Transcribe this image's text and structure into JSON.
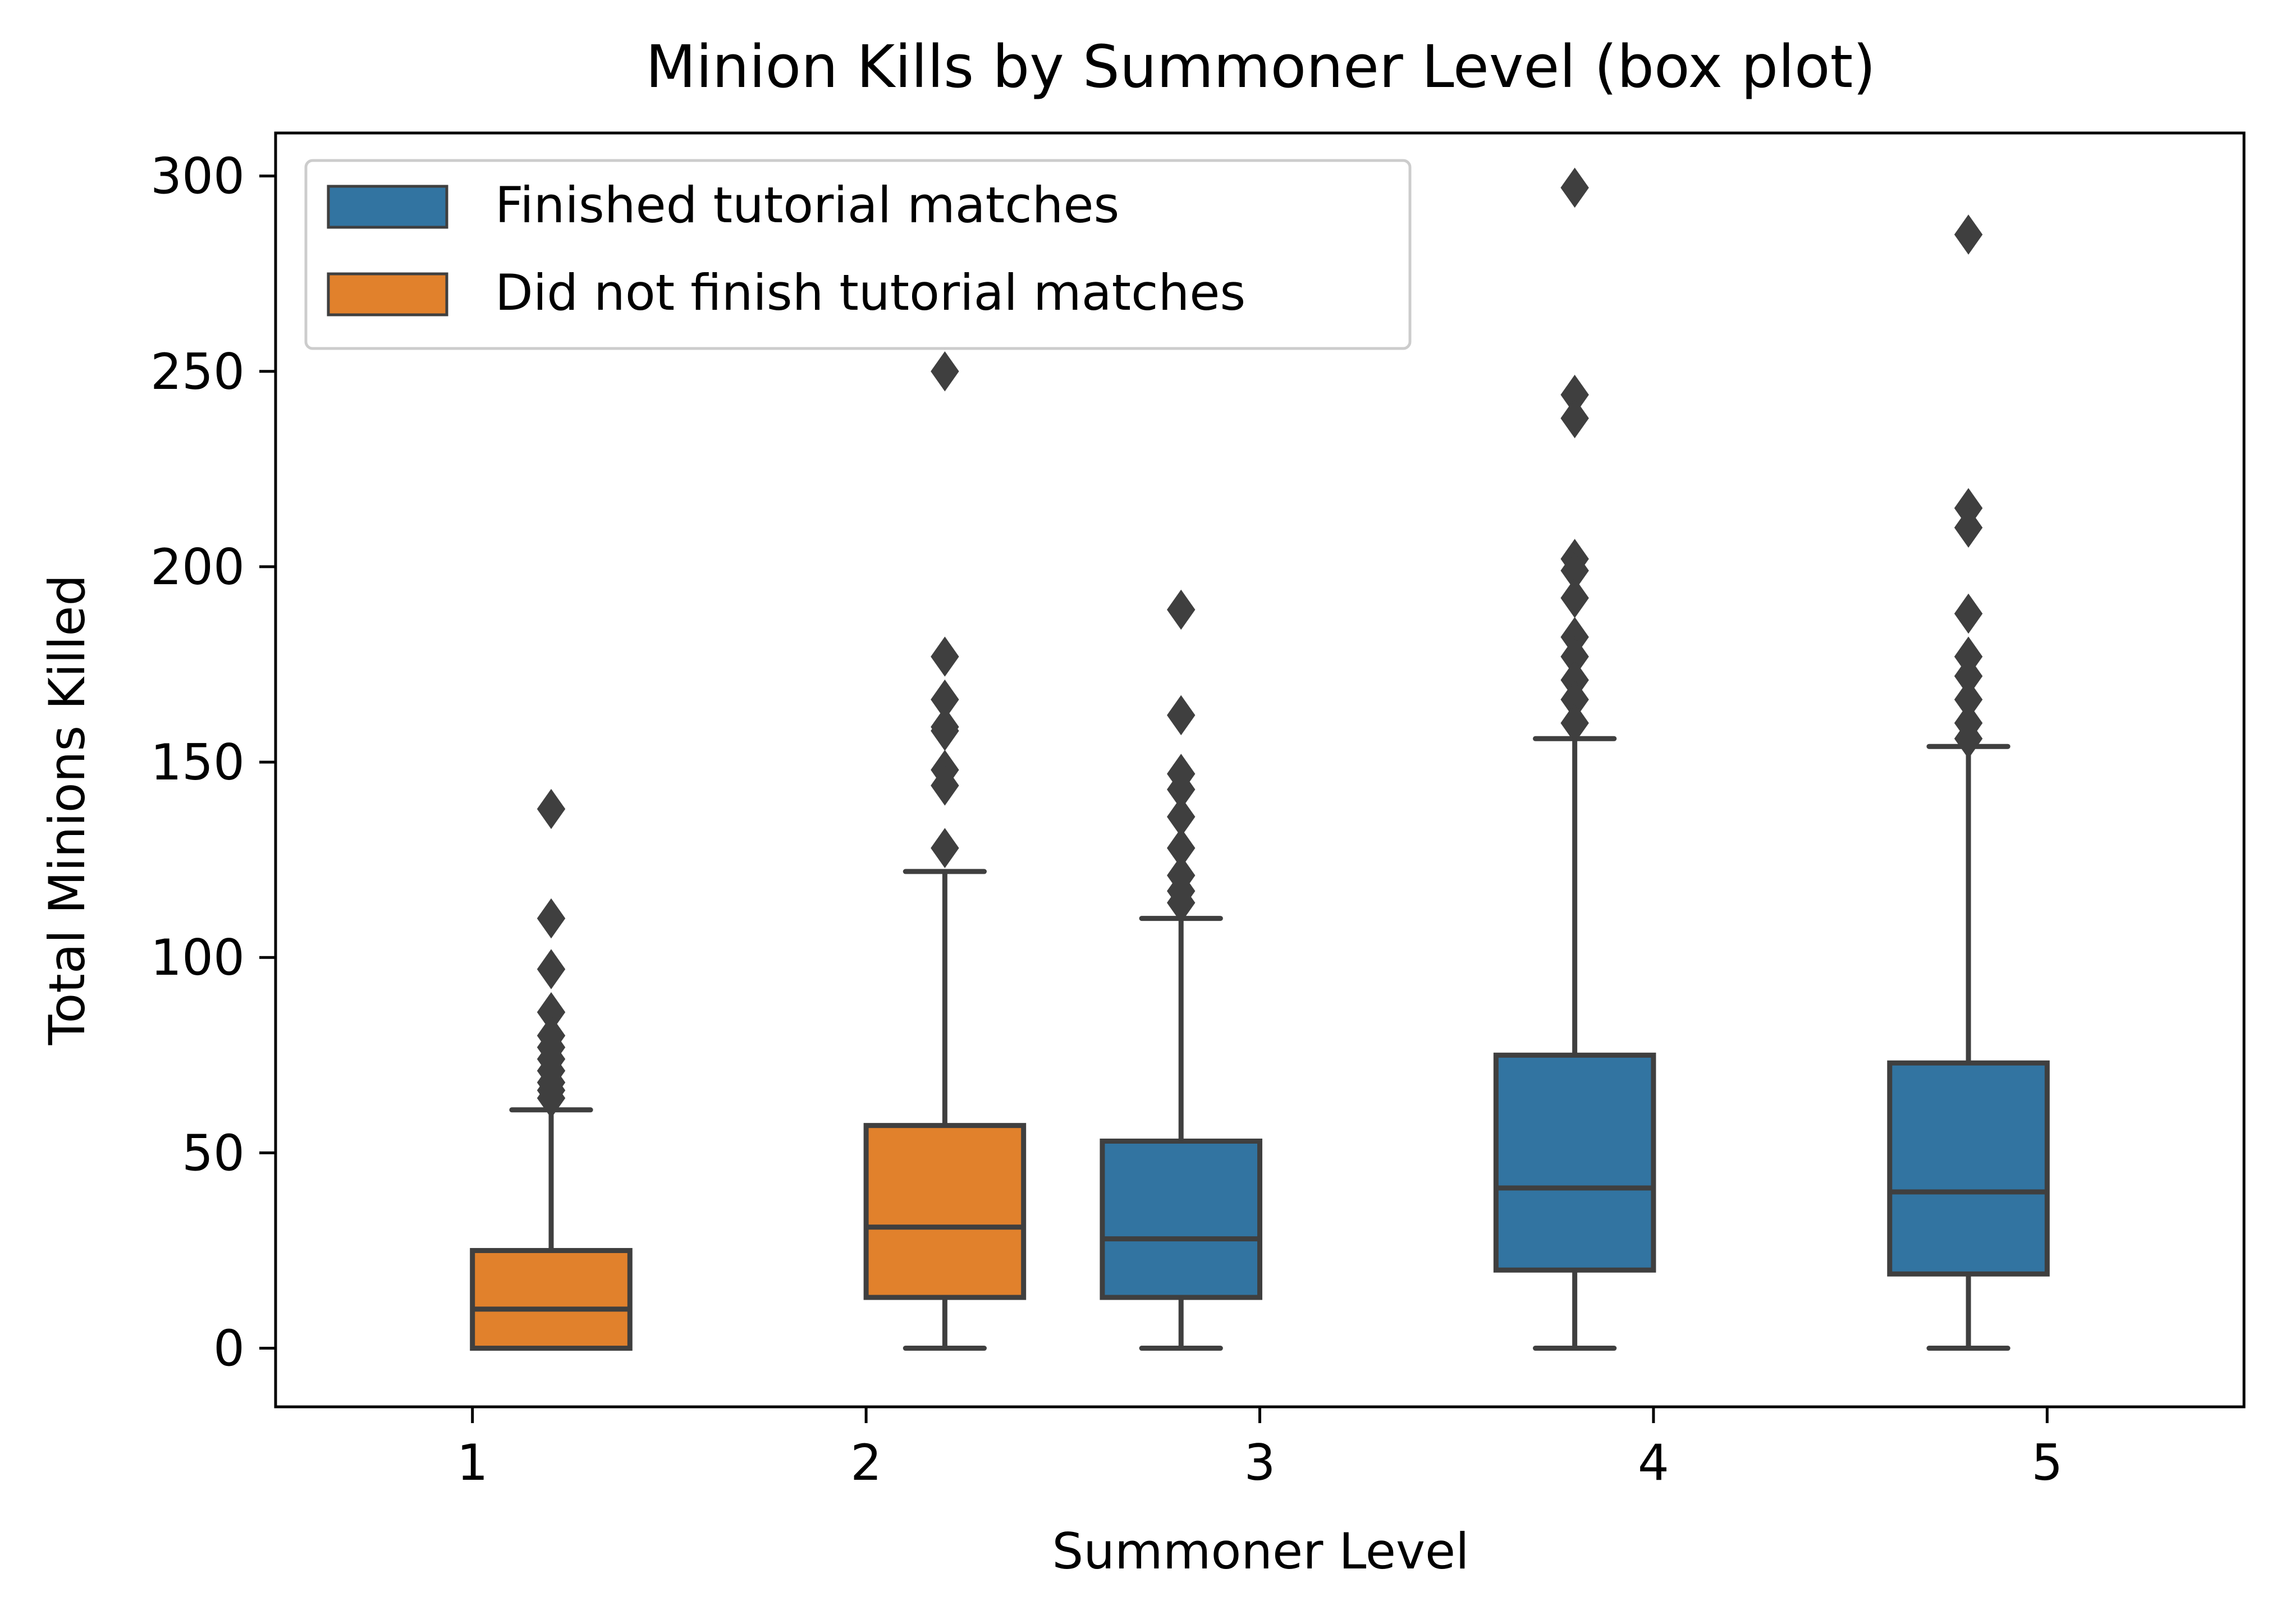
{
  "chart_data": {
    "type": "box",
    "title": "Minion Kills by Summoner Level (box plot)",
    "xlabel": "Summoner Level",
    "ylabel": "Total Minions Killed",
    "categories": [
      "1",
      "2",
      "3",
      "4",
      "5"
    ],
    "ylim": [
      -15,
      311
    ],
    "yticks": [
      0,
      50,
      100,
      150,
      200,
      250,
      300
    ],
    "legend_position": "top-left",
    "grid": false,
    "series": [
      {
        "name": "Finished tutorial matches",
        "color": "#3274a1"
      },
      {
        "name": "Did not finish tutorial matches",
        "color": "#e1812c"
      }
    ],
    "boxes": [
      {
        "category": "1",
        "series": "Did not finish tutorial matches",
        "offset": 0.2,
        "whisker_low": 0,
        "q1": 0,
        "median": 10,
        "q3": 25,
        "whisker_high": 61,
        "outliers": [
          138,
          110,
          97,
          86,
          80,
          77,
          74,
          71,
          68,
          66,
          64
        ]
      },
      {
        "category": "2",
        "series": "Did not finish tutorial matches",
        "offset": 0.2,
        "whisker_low": 0,
        "q1": 13,
        "median": 31,
        "q3": 57,
        "whisker_high": 122,
        "outliers": [
          250,
          177,
          166,
          159,
          158,
          148,
          144,
          128
        ]
      },
      {
        "category": "3",
        "series": "Finished tutorial matches",
        "offset": -0.2,
        "whisker_low": 0,
        "q1": 13,
        "median": 28,
        "q3": 53,
        "whisker_high": 110,
        "outliers": [
          189,
          162,
          147,
          143,
          136,
          128,
          121,
          117,
          114
        ]
      },
      {
        "category": "4",
        "series": "Finished tutorial matches",
        "offset": -0.2,
        "whisker_low": 0,
        "q1": 20,
        "median": 41,
        "q3": 75,
        "whisker_high": 156,
        "outliers": [
          297,
          244,
          238,
          202,
          199,
          192,
          182,
          177,
          171,
          166,
          160
        ]
      },
      {
        "category": "5",
        "series": "Finished tutorial matches",
        "offset": -0.2,
        "whisker_low": 0,
        "q1": 19,
        "median": 40,
        "q3": 73,
        "whisker_high": 154,
        "outliers": [
          285,
          215,
          210,
          188,
          177,
          172,
          166,
          160,
          156
        ]
      }
    ]
  }
}
